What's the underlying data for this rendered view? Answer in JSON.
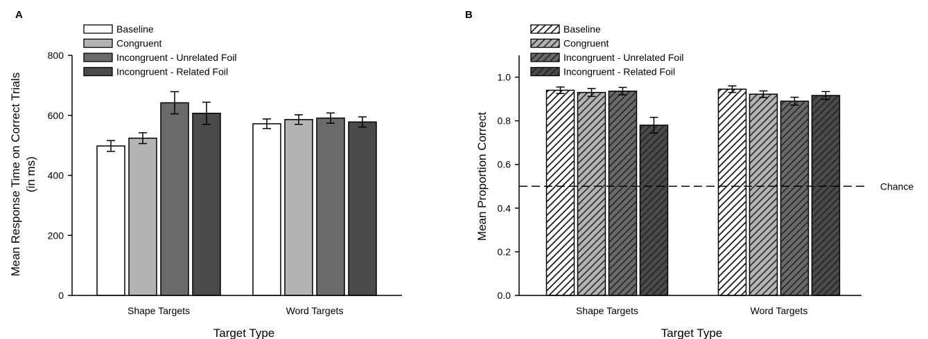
{
  "chart_data": [
    {
      "panel": "A",
      "type": "bar",
      "categories": [
        "Shape Targets",
        "Word Targets"
      ],
      "series": [
        {
          "name": "Baseline",
          "values": [
            498,
            572
          ],
          "errors": [
            18,
            16
          ],
          "color": "#ffffff"
        },
        {
          "name": "Congruent",
          "values": [
            524,
            586
          ],
          "errors": [
            18,
            16
          ],
          "color": "#b4b4b4"
        },
        {
          "name": "Incongruent - Unrelated Foil",
          "values": [
            642,
            591
          ],
          "errors": [
            37,
            17
          ],
          "color": "#6a6a6a"
        },
        {
          "name": "Incongruent - Related Foil",
          "values": [
            607,
            578
          ],
          "errors": [
            37,
            17
          ],
          "color": "#4a4a4a"
        }
      ],
      "xlabel": "Target Type",
      "ylabel": [
        "Mean Response Time on Correct Trials",
        "(in ms)"
      ],
      "ylim": [
        0,
        800
      ],
      "yticks": [
        "0",
        "200",
        "400",
        "600",
        "800"
      ],
      "pattern": "solid",
      "legend_position": "top-left",
      "grid": false
    },
    {
      "panel": "B",
      "type": "bar",
      "categories": [
        "Shape Targets",
        "Word Targets"
      ],
      "series": [
        {
          "name": "Baseline",
          "values": [
            0.94,
            0.945
          ],
          "errors": [
            0.015,
            0.015
          ],
          "color": "#ffffff"
        },
        {
          "name": "Congruent",
          "values": [
            0.93,
            0.922
          ],
          "errors": [
            0.018,
            0.015
          ],
          "color": "#b4b4b4"
        },
        {
          "name": "Incongruent - Unrelated Foil",
          "values": [
            0.936,
            0.89
          ],
          "errors": [
            0.017,
            0.018
          ],
          "color": "#6a6a6a"
        },
        {
          "name": "Incongruent - Related Foil",
          "values": [
            0.78,
            0.916
          ],
          "errors": [
            0.036,
            0.018
          ],
          "color": "#4a4a4a"
        }
      ],
      "xlabel": "Target Type",
      "ylabel": [
        "Mean Proportion Correct"
      ],
      "ylim": [
        0,
        1.1
      ],
      "yticks": [
        "0.0",
        "0.2",
        "0.4",
        "0.6",
        "0.8",
        "1.0"
      ],
      "pattern": "hatched",
      "reference_line": {
        "value": 0.5,
        "label": "Chance",
        "style": "dashed"
      },
      "legend_position": "top-left",
      "grid": false
    }
  ]
}
